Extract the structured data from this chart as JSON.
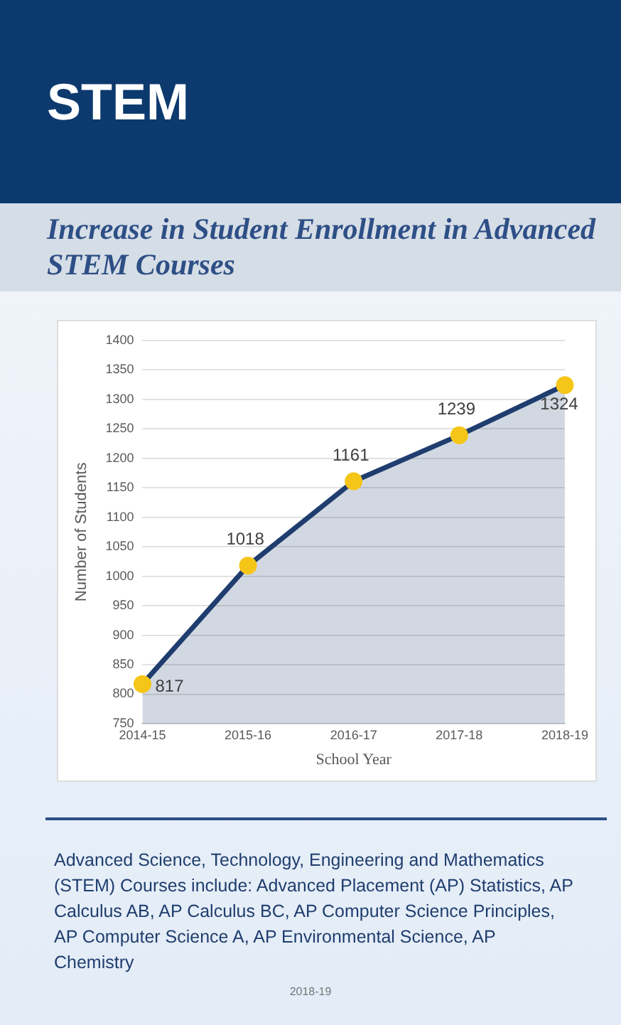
{
  "chart_data": {
    "type": "area",
    "title": "STEM",
    "subtitle": "Increase in Student Enrollment in Advanced STEM Courses",
    "xlabel": "School Year",
    "ylabel": "Number of Students",
    "categories": [
      "2014-15",
      "2015-16",
      "2016-17",
      "2017-18",
      "2018-19"
    ],
    "series": [
      {
        "color": "#1f3d6e",
        "values": [
          817,
          1018,
          1161,
          1239,
          1324
        ]
      }
    ],
    "ylim": [
      750,
      1400
    ],
    "yticks": [
      750,
      800,
      850,
      900,
      950,
      1000,
      1050,
      1100,
      1150,
      1200,
      1250,
      1300,
      1350,
      1400
    ],
    "grid": "y",
    "legend": false,
    "marker": "circle",
    "line_style": "solid",
    "data_labels": true,
    "annotations": [
      "Advanced Science, Technology, Engineering and Mathematics (STEM) Courses include: Advanced Placement (AP) Statistics, AP Calculus AB, AP Calculus BC, AP Computer Science Principles, AP Computer Science A, AP Environmental Science, AP Chemistry",
      "2018-19"
    ]
  }
}
